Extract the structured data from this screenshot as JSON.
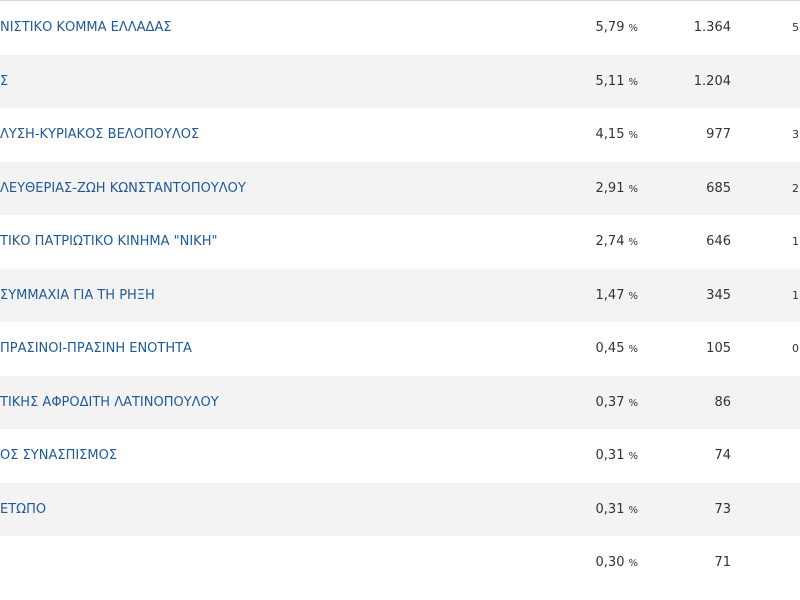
{
  "table": {
    "rows": [
      {
        "name": "ΝΙΣΤΙΚΟ ΚΟΜΜΑ ΕΛΛΑΔΑΣ",
        "percent": "5,79",
        "unit": "%",
        "votes": "1.364",
        "extra": "5"
      },
      {
        "name": "Σ",
        "percent": "5,11",
        "unit": "%",
        "votes": "1.204"
      },
      {
        "name": "ΛΥΣΗ-ΚΥΡΙΑΚΟΣ ΒΕΛΟΠΟΥΛΟΣ",
        "percent": "4,15",
        "unit": "%",
        "votes": "977",
        "extra": "3"
      },
      {
        "name": "ΛΕΥΘΕΡΙΑΣ-ΖΩΗ ΚΩΝΣΤΑΝΤΟΠΟΥΛΟΥ",
        "percent": "2,91",
        "unit": "%",
        "votes": "685",
        "extra": "2"
      },
      {
        "name": "ΤΙΚΟ ΠΑΤΡΙΩΤΙΚΟ ΚΙΝΗΜΑ \"ΝΙΚΗ\"",
        "percent": "2,74",
        "unit": "%",
        "votes": "646",
        "extra": "1"
      },
      {
        "name": "ΣΥΜΜΑΧΙΑ ΓΙΑ ΤΗ ΡΗΞΗ",
        "percent": "1,47",
        "unit": "%",
        "votes": "345",
        "extra": "1"
      },
      {
        "name": "ΠΡΑΣΙΝΟΙ-ΠΡΑΣΙΝΗ ΕΝΟΤΗΤΑ",
        "percent": "0,45",
        "unit": "%",
        "votes": "105",
        "extra": "0"
      },
      {
        "name": "ΤΙΚΗΣ ΑΦΡΟΔΙΤΗ ΛΑΤΙΝΟΠΟΥΛΟΥ",
        "percent": "0,37",
        "unit": "%",
        "votes": "86"
      },
      {
        "name": "ΟΣ ΣΥΝΑΣΠΙΣΜΟΣ",
        "percent": "0,31",
        "unit": "%",
        "votes": "74"
      },
      {
        "name": "ΕΤΩΠΟ",
        "percent": "0,31",
        "unit": "%",
        "votes": "73"
      },
      {
        "percent": "0,30",
        "unit": "%",
        "votes": "71"
      }
    ]
  }
}
